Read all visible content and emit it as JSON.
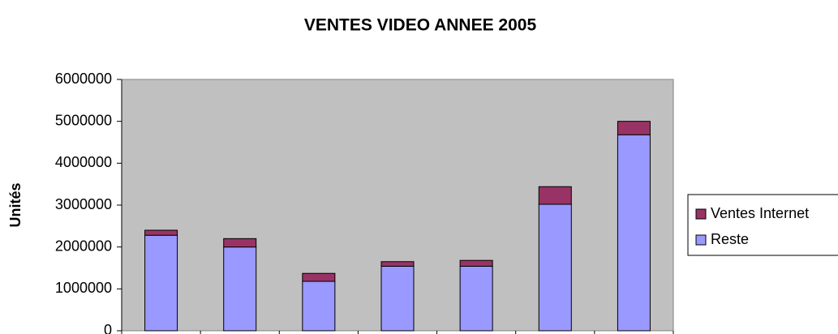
{
  "chart_data": {
    "type": "stacked_bar",
    "title": "VENTES VIDEO ANNEE 2005",
    "y_label": "Unités",
    "categories": [
      null,
      null,
      null,
      null,
      null,
      null,
      null
    ],
    "series": [
      {
        "name": "Reste",
        "color": "#9999ff",
        "values": [
          2280000,
          2000000,
          1180000,
          1540000,
          1540000,
          3020000,
          4680000
        ]
      },
      {
        "name": "Ventes Internet",
        "color": "#993366",
        "values": [
          120000,
          200000,
          190000,
          110000,
          140000,
          420000,
          320000
        ]
      }
    ],
    "ylim": [
      0,
      6000000
    ],
    "yticks": [
      0,
      1000000,
      2000000,
      3000000,
      4000000,
      5000000,
      6000000
    ],
    "grid": false,
    "legend": "right",
    "plot_background": "#c0c0c0"
  }
}
